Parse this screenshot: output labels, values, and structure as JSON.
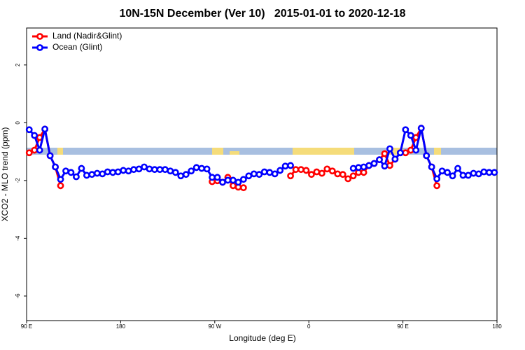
{
  "chart_data": {
    "type": "line",
    "title": "10N-15N December (Ver 10)   2015-01-01 to 2020-12-18",
    "x_label": "Longitude (deg E)",
    "y_label": "XCO2 - MLO trend (ppm)",
    "x": [
      92.5,
      97.5,
      102.5,
      107.5,
      112.5,
      117.5,
      122.5,
      127.5,
      132.5,
      137.5,
      142.5,
      147.5,
      152.5,
      157.5,
      162.5,
      167.5,
      172.5,
      177.5,
      182.5,
      187.5,
      192.5,
      197.5,
      202.5,
      207.5,
      212.5,
      217.5,
      222.5,
      227.5,
      232.5,
      237.5,
      242.5,
      247.5,
      252.5,
      257.5,
      262.5,
      267.5,
      272.5,
      277.5,
      282.5,
      287.5,
      292.5,
      297.5,
      302.5,
      307.5,
      312.5,
      317.5,
      322.5,
      327.5,
      332.5,
      337.5,
      342.5,
      347.5,
      352.5,
      357.5,
      362.5,
      367.5,
      372.5,
      377.5,
      382.5,
      387.5,
      392.5,
      397.5,
      402.5,
      407.5,
      412.5,
      417.5,
      422.5,
      427.5,
      432.5,
      437.5,
      442.5,
      447.5,
      452.5,
      457.5,
      462.5,
      467.5,
      472.5,
      477.5,
      482.5,
      487.5,
      492.5,
      497.5,
      502.5,
      507.5,
      512.5,
      517.5,
      522.5,
      527.5,
      532.5,
      537.5
    ],
    "series": [
      {
        "name": "Land (Nadir&Glint)",
        "color": "#ff0000",
        "values": [
          -1.04,
          -0.95,
          -0.51,
          -0.22,
          -1.14,
          -1.53,
          -2.18,
          null,
          null,
          null,
          null,
          null,
          null,
          null,
          null,
          null,
          null,
          null,
          null,
          null,
          null,
          null,
          null,
          null,
          null,
          null,
          null,
          null,
          null,
          null,
          null,
          null,
          null,
          null,
          null,
          -2.04,
          -2.01,
          -2.06,
          -1.89,
          -2.18,
          -2.23,
          -2.25,
          null,
          null,
          null,
          null,
          null,
          null,
          null,
          null,
          -1.84,
          -1.62,
          -1.62,
          -1.65,
          -1.79,
          -1.7,
          -1.75,
          -1.6,
          -1.67,
          -1.77,
          -1.79,
          -1.94,
          -1.84,
          -1.72,
          -1.72,
          -1.48,
          -1.41,
          -1.28,
          -1.07,
          -1.48,
          -1.26,
          -1.04,
          -1.04,
          -0.95,
          -0.51,
          -0.19,
          -1.14,
          -1.53,
          -2.18,
          null,
          null,
          null,
          null,
          null,
          null,
          null,
          null,
          null,
          null,
          null
        ]
      },
      {
        "name": "Ocean (Glint)",
        "color": "#0000ff",
        "values": [
          -0.24,
          -0.44,
          -0.95,
          -0.22,
          -1.14,
          -1.53,
          -1.96,
          -1.67,
          -1.72,
          -1.87,
          -1.58,
          -1.82,
          -1.79,
          -1.75,
          -1.77,
          -1.7,
          -1.72,
          -1.7,
          -1.65,
          -1.67,
          -1.62,
          -1.6,
          -1.53,
          -1.6,
          -1.62,
          -1.62,
          -1.62,
          -1.67,
          -1.72,
          -1.84,
          -1.79,
          -1.67,
          -1.55,
          -1.58,
          -1.6,
          -1.89,
          -1.89,
          -2.06,
          -1.99,
          -1.99,
          -2.06,
          -1.96,
          -1.84,
          -1.77,
          -1.79,
          -1.7,
          -1.72,
          -1.77,
          -1.65,
          -1.5,
          -1.48,
          null,
          null,
          null,
          null,
          null,
          null,
          null,
          null,
          null,
          null,
          null,
          -1.58,
          -1.55,
          -1.53,
          -1.48,
          -1.41,
          -1.28,
          -1.5,
          -0.9,
          -1.26,
          -1.04,
          -0.24,
          -0.44,
          -0.95,
          -0.19,
          -1.14,
          -1.53,
          -1.94,
          -1.67,
          -1.72,
          -1.84,
          -1.58,
          -1.82,
          -1.82,
          -1.75,
          -1.77,
          -1.7,
          -1.72,
          -1.72
        ]
      }
    ],
    "xlim": [
      90,
      540
    ],
    "xticks": [
      {
        "value": 90,
        "label": "90 E"
      },
      {
        "value": 180,
        "label": "180"
      },
      {
        "value": 270,
        "label": "90 W"
      },
      {
        "value": 360,
        "label": "0"
      },
      {
        "value": 450,
        "label": "90 E"
      },
      {
        "value": 540,
        "label": "180"
      }
    ],
    "ylim": [
      -6.85,
      3.28
    ],
    "yticks": [
      -6,
      -4,
      -2,
      0,
      2
    ],
    "legend": "top-left",
    "grid": false
  }
}
